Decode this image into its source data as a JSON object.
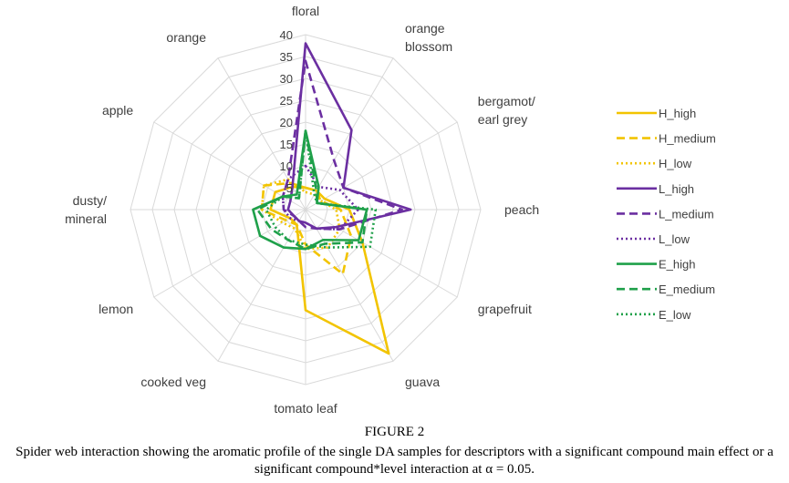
{
  "figure": {
    "title": "FIGURE 2",
    "caption": "Spider web interaction showing the aromatic profile of the single DA samples for descriptors with a significant compound main effect or a significant compound*level interaction at α = 0.05."
  },
  "chart_data": {
    "type": "radar",
    "axes": [
      "floral",
      "orange blossom",
      "bergamot/ earl grey",
      "peach",
      "grapefruit",
      "guava",
      "tomato leaf",
      "cooked veg",
      "lemon",
      "dusty/ mineral",
      "apple",
      "orange"
    ],
    "axis_label_lines": [
      [
        "floral"
      ],
      [
        "orange",
        "blossom"
      ],
      [
        "bergamot/",
        "earl grey"
      ],
      [
        "peach"
      ],
      [
        "grapefruit"
      ],
      [
        "guava"
      ],
      [
        "tomato leaf"
      ],
      [
        "cooked veg"
      ],
      [
        "lemon"
      ],
      [
        "dusty/",
        "mineral"
      ],
      [
        "apple"
      ],
      [
        "orange"
      ]
    ],
    "rmin": 0,
    "rmax": 40,
    "ticks": [
      5,
      10,
      15,
      20,
      25,
      30,
      35,
      40
    ],
    "grid": true,
    "legend_position": "right",
    "series": [
      {
        "name": "H_high",
        "color": "#F2C400",
        "dash": "solid",
        "values": [
          5,
          5,
          5,
          10,
          15,
          38,
          23,
          4,
          4,
          8,
          8,
          6
        ]
      },
      {
        "name": "H_medium",
        "color": "#F2C400",
        "dash": "dashed",
        "values": [
          5,
          5,
          4,
          8,
          12,
          17,
          8,
          4,
          5,
          10,
          11,
          7
        ]
      },
      {
        "name": "H_low",
        "color": "#F2C400",
        "dash": "dotted",
        "values": [
          4,
          4,
          4,
          7,
          9,
          10,
          9,
          5,
          6,
          10,
          11,
          8
        ]
      },
      {
        "name": "L_high",
        "color": "#6B2FA1",
        "dash": "solid",
        "values": [
          38,
          21,
          10,
          24,
          8,
          5,
          3,
          3,
          3,
          4,
          4,
          6
        ]
      },
      {
        "name": "L_medium",
        "color": "#6B2FA1",
        "dash": "dashed",
        "values": [
          34,
          13,
          10,
          22,
          9,
          5,
          4,
          3,
          3,
          5,
          6,
          8
        ]
      },
      {
        "name": "L_low",
        "color": "#6B2FA1",
        "dash": "dotted",
        "values": [
          10,
          6,
          9,
          12,
          9,
          5,
          3,
          3,
          4,
          5,
          6,
          8
        ]
      },
      {
        "name": "E_high",
        "color": "#1FA04A",
        "dash": "solid",
        "values": [
          18,
          6,
          3,
          14,
          14,
          8,
          9,
          10,
          12,
          12,
          6,
          4
        ]
      },
      {
        "name": "E_medium",
        "color": "#1FA04A",
        "dash": "dashed",
        "values": [
          18,
          5,
          3,
          14,
          15,
          9,
          9,
          8,
          9,
          11,
          6,
          3
        ]
      },
      {
        "name": "E_low",
        "color": "#1FA04A",
        "dash": "dotted",
        "values": [
          18,
          4,
          3,
          16,
          17,
          10,
          8,
          8,
          8,
          9,
          6,
          3
        ]
      }
    ]
  }
}
